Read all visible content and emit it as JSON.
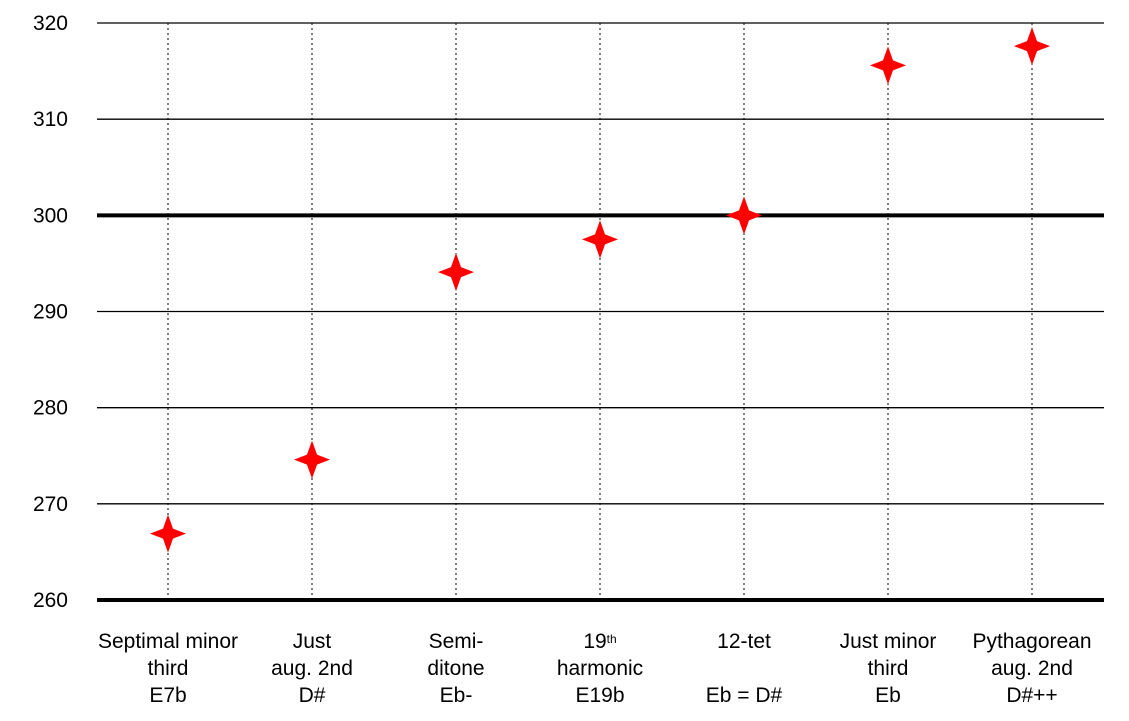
{
  "chart_data": {
    "type": "scatter",
    "marker": "four-point-star",
    "marker_color": "#ff0000",
    "ylim": [
      260,
      320
    ],
    "yticks": [
      "260",
      "270",
      "280",
      "290",
      "300",
      "310",
      "320"
    ],
    "reference_line": 300,
    "grid": "horizontal solid, vertical dotted",
    "categories": [
      {
        "lines": [
          "Septimal minor",
          "third",
          "E7b"
        ]
      },
      {
        "lines": [
          "Just",
          "aug. 2nd",
          "D#"
        ]
      },
      {
        "lines": [
          "Semi-",
          "ditone",
          "Eb-"
        ]
      },
      {
        "lines": [
          "19",
          "harmonic",
          "E19b"
        ],
        "superscript": "th"
      },
      {
        "lines": [
          "12-tet",
          "",
          "Eb = D#"
        ]
      },
      {
        "lines": [
          "Just minor",
          "third",
          "Eb"
        ]
      },
      {
        "lines": [
          "Pythagorean",
          "aug. 2nd",
          "D#++"
        ]
      }
    ],
    "values": [
      266.9,
      274.6,
      294.1,
      297.5,
      300.0,
      315.6,
      317.6
    ]
  }
}
